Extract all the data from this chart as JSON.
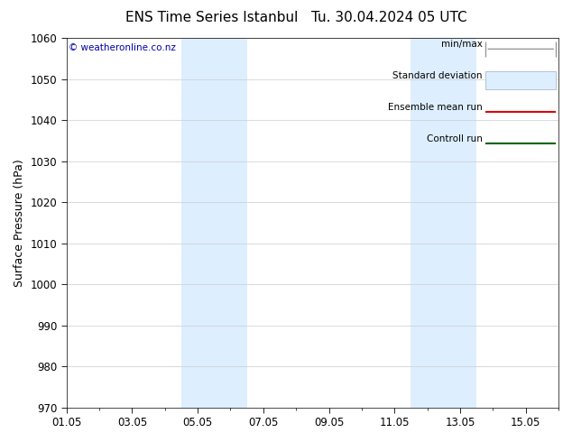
{
  "title_left": "ENS Time Series Istanbul",
  "title_right": "Tu. 30.04.2024 05 UTC",
  "ylabel": "Surface Pressure (hPa)",
  "ylim": [
    970,
    1060
  ],
  "yticks": [
    970,
    980,
    990,
    1000,
    1010,
    1020,
    1030,
    1040,
    1050,
    1060
  ],
  "xtick_labels": [
    "01.05",
    "03.05",
    "05.05",
    "07.05",
    "09.05",
    "11.05",
    "13.05",
    "15.05"
  ],
  "xtick_positions": [
    0,
    2,
    4,
    6,
    8,
    10,
    12,
    14
  ],
  "xlim": [
    0,
    15
  ],
  "shaded_bands": [
    {
      "xstart": 3.5,
      "xend": 5.5,
      "color": "#ddeeff"
    },
    {
      "xstart": 10.5,
      "xend": 12.5,
      "color": "#ddeeff"
    }
  ],
  "copyright_text": "© weatheronline.co.nz",
  "legend_items": [
    {
      "label": "min/max",
      "color": "#999999",
      "type": "line_with_bars"
    },
    {
      "label": "Standard deviation",
      "color": "#ccddee",
      "type": "box"
    },
    {
      "label": "Ensemble mean run",
      "color": "#dd0000",
      "type": "line"
    },
    {
      "label": "Controll run",
      "color": "#006600",
      "type": "line"
    }
  ],
  "bg_color": "#ffffff",
  "grid_color": "#cccccc",
  "title_fontsize": 11,
  "axis_fontsize": 9,
  "tick_fontsize": 8.5,
  "legend_fontsize": 7.5
}
